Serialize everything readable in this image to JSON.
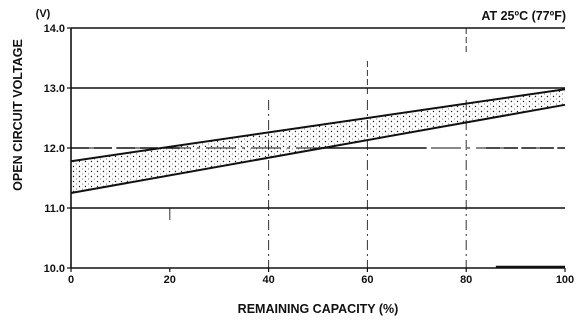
{
  "chart_data": {
    "type": "area",
    "title": "",
    "annotation": "AT 25ºC (77ºF)",
    "unit_label": "(V)",
    "xlabel": "REMAINING CAPACITY (%)",
    "ylabel": "OPEN CIRCUIT VOLTAGE",
    "xlim": [
      0,
      100
    ],
    "ylim": [
      10.0,
      14.0
    ],
    "x_ticks": [
      0,
      20,
      40,
      60,
      80,
      100
    ],
    "y_ticks": [
      "10.0",
      "11.0",
      "12.0",
      "13.0",
      "14.0"
    ],
    "grid": "horizontal at 11.0, 12.0, 13.0; dash-dot verticals and broken lines in background",
    "series": [
      {
        "name": "",
        "role": "upper-bound",
        "x": [
          0,
          100
        ],
        "y": [
          11.78,
          12.98
        ]
      },
      {
        "name": "",
        "role": "lower-bound",
        "x": [
          0,
          100
        ],
        "y": [
          11.25,
          12.72
        ]
      }
    ],
    "fill": "dotted band between upper and lower bound",
    "colors": {
      "line": "#111111",
      "background": "#ffffff"
    }
  }
}
